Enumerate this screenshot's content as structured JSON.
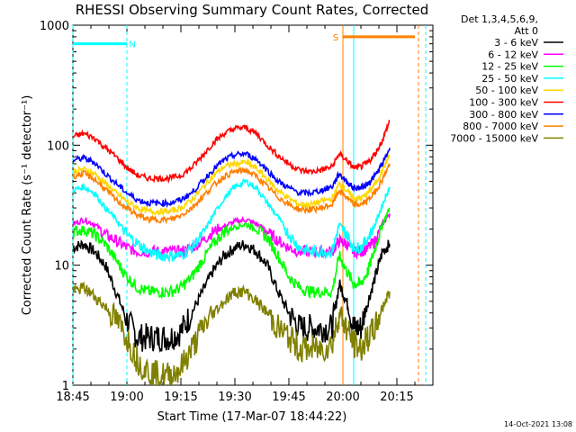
{
  "chart_data": {
    "type": "line",
    "title": "RHESSI Observing Summary Count Rates, Corrected",
    "xlabel": "Start Time (17-Mar-07 18:44:22)",
    "ylabel": "Corrected Count Rate (s⁻¹ detector⁻¹)",
    "yscale": "log",
    "xlim": [
      0,
      100
    ],
    "ylim": [
      1,
      1000
    ],
    "x_ticks": [
      {
        "v": 0,
        "label": "18:45"
      },
      {
        "v": 15,
        "label": "19:00"
      },
      {
        "v": 30,
        "label": "19:15"
      },
      {
        "v": 45,
        "label": "19:30"
      },
      {
        "v": 60,
        "label": "19:45"
      },
      {
        "v": 75,
        "label": "20:00"
      },
      {
        "v": 90,
        "label": "20:15"
      }
    ],
    "y_ticks": [
      {
        "v": 1,
        "label": "1"
      },
      {
        "v": 10,
        "label": "10"
      },
      {
        "v": 100,
        "label": "100"
      },
      {
        "v": 1000,
        "label": "1000"
      }
    ],
    "grid": false,
    "legend_position": "right",
    "legend_header": [
      "Det 1,3,4,5,6,9,",
      "Att 0"
    ],
    "x": [
      0,
      3,
      6,
      9,
      12,
      15,
      18,
      21,
      24,
      27,
      30,
      33,
      36,
      39,
      42,
      45,
      48,
      51,
      54,
      57,
      60,
      63,
      66,
      69,
      72,
      74,
      76,
      78,
      80,
      82,
      84,
      86,
      88
    ],
    "series": [
      {
        "name": "3 - 6 keV",
        "color": "#000000",
        "values": [
          14,
          15,
          13,
          10,
          6,
          3.5,
          2.5,
          2.5,
          2.5,
          2.5,
          2.8,
          4,
          6,
          9,
          12,
          14,
          15,
          13,
          10,
          6,
          4,
          3,
          3,
          3,
          3,
          7,
          5,
          3,
          3,
          5,
          8,
          13,
          15
        ]
      },
      {
        "name": "6 - 12 keV",
        "color": "#ff00ff",
        "values": [
          22,
          24,
          22,
          18,
          16,
          14,
          13,
          13,
          13,
          13,
          13,
          14,
          16,
          19,
          21,
          23,
          24,
          22,
          19,
          16,
          14,
          13,
          13,
          13,
          13,
          16,
          15,
          13,
          13,
          14,
          16,
          22,
          27
        ]
      },
      {
        "name": "12 - 25 keV",
        "color": "#00ff00",
        "values": [
          19,
          20,
          18,
          15,
          11,
          8,
          6.5,
          6,
          6,
          6,
          6.5,
          8,
          11,
          15,
          19,
          21,
          22,
          20,
          17,
          12,
          8,
          6.5,
          6,
          6,
          6,
          12,
          9,
          7,
          7,
          9,
          14,
          22,
          30
        ]
      },
      {
        "name": "25 - 50 keV",
        "color": "#00ffff",
        "values": [
          42,
          45,
          40,
          30,
          24,
          18,
          15,
          13,
          12,
          12,
          12,
          14,
          18,
          26,
          36,
          45,
          50,
          44,
          33,
          25,
          18,
          14,
          13,
          13,
          13,
          22,
          18,
          14,
          14,
          17,
          22,
          32,
          45
        ]
      },
      {
        "name": "50 - 100 keV",
        "color": "#ffd700",
        "values": [
          60,
          63,
          58,
          48,
          40,
          34,
          30,
          28,
          28,
          28,
          30,
          35,
          44,
          56,
          66,
          70,
          72,
          64,
          52,
          42,
          36,
          32,
          32,
          34,
          36,
          48,
          42,
          36,
          36,
          40,
          48,
          62,
          82
        ]
      },
      {
        "name": "100 - 300 keV",
        "color": "#ff0000",
        "values": [
          118,
          125,
          115,
          95,
          80,
          65,
          56,
          53,
          53,
          53,
          56,
          65,
          82,
          105,
          125,
          138,
          140,
          125,
          100,
          82,
          70,
          62,
          60,
          62,
          66,
          85,
          75,
          65,
          66,
          72,
          85,
          110,
          160
        ]
      },
      {
        "name": "300 - 800 keV",
        "color": "#0000ff",
        "values": [
          75,
          78,
          72,
          58,
          48,
          40,
          35,
          33,
          33,
          33,
          35,
          40,
          50,
          63,
          75,
          83,
          85,
          76,
          62,
          50,
          44,
          40,
          40,
          42,
          45,
          58,
          50,
          44,
          44,
          48,
          56,
          70,
          95
        ]
      },
      {
        "name": "800 - 7000 keV",
        "color": "#ff7f00",
        "values": [
          55,
          58,
          52,
          43,
          35,
          30,
          26,
          24,
          24,
          24,
          26,
          30,
          37,
          46,
          55,
          60,
          62,
          55,
          45,
          37,
          32,
          29,
          29,
          30,
          32,
          42,
          37,
          32,
          32,
          35,
          41,
          52,
          70
        ]
      },
      {
        "name": "7000 - 15000 keV",
        "color": "#808000",
        "values": [
          6,
          6.5,
          5.5,
          4.5,
          3.5,
          2.5,
          1.6,
          1.3,
          1.2,
          1.2,
          1.4,
          2,
          3,
          4,
          5,
          6,
          6,
          5,
          4,
          3,
          2.5,
          2,
          2,
          2,
          2.2,
          4,
          3,
          2.2,
          2,
          2.5,
          3,
          4.5,
          6
        ]
      }
    ],
    "flag_markers": [
      {
        "label": "N",
        "color": "#00ffff",
        "x_start": 0,
        "x_end": 15,
        "y": 700
      },
      {
        "label": "S",
        "color": "#ff7f00",
        "x_start": 75,
        "x_end": 95,
        "y": 800
      }
    ],
    "vertical_markers": [
      {
        "x": 0,
        "color": "#00ffff",
        "style": "dashed"
      },
      {
        "x": 15,
        "color": "#00ffff",
        "style": "dashed"
      },
      {
        "x": 75,
        "color": "#ff7f00",
        "style": "solid"
      },
      {
        "x": 78,
        "color": "#00ffff",
        "style": "solid"
      },
      {
        "x": 96,
        "color": "#ff7f00",
        "style": "dashed"
      },
      {
        "x": 98,
        "color": "#00ffff",
        "style": "dashed"
      }
    ]
  },
  "timestamp": "14-Oct-2021 13:08"
}
